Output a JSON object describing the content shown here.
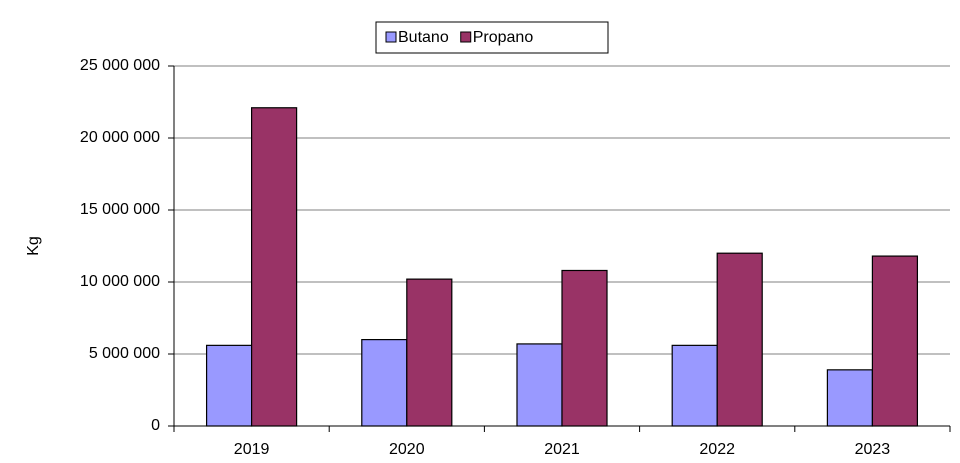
{
  "chart_data": {
    "type": "bar",
    "y_label": "Kg",
    "categories": [
      "2019",
      "2020",
      "2021",
      "2022",
      "2023"
    ],
    "series": [
      {
        "name": "Butano",
        "color": "#9999ff",
        "values": [
          5600000,
          6000000,
          5700000,
          5600000,
          3900000
        ]
      },
      {
        "name": "Propano",
        "color": "#993366",
        "values": [
          22100000,
          10200000,
          10800000,
          12000000,
          11800000
        ]
      }
    ],
    "ylim": [
      0,
      25000000
    ],
    "yticks": [
      0,
      {
        "value": 5000000,
        "label": "5 000 000"
      },
      {
        "value": 10000000,
        "label": "10 000 000"
      },
      {
        "value": 15000000,
        "label": "15 000 000"
      },
      {
        "value": 20000000,
        "label": "20 000 000"
      },
      {
        "value": 25000000,
        "label": "25 000 000"
      }
    ],
    "grid": true,
    "legend": "top"
  }
}
